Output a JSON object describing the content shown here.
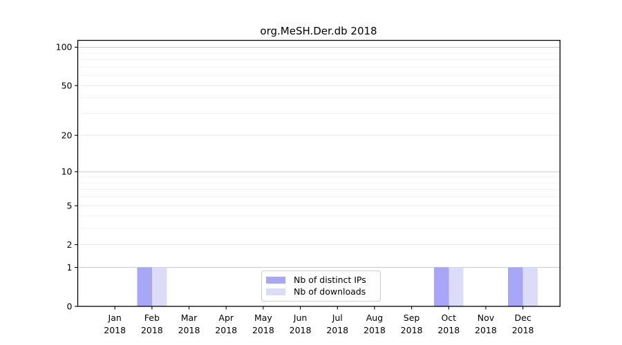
{
  "chart_data": {
    "type": "bar",
    "title": "org.MeSH.Der.db 2018",
    "categories": [
      "Jan",
      "Feb",
      "Mar",
      "Apr",
      "May",
      "Jun",
      "Jul",
      "Aug",
      "Sep",
      "Oct",
      "Nov",
      "Dec"
    ],
    "x_tick_year": "2018",
    "series": [
      {
        "name": "Nb of distinct IPs",
        "color": "#a8a6f6",
        "values": [
          0,
          1,
          0,
          0,
          0,
          0,
          0,
          0,
          0,
          1,
          0,
          1
        ]
      },
      {
        "name": "Nb of downloads",
        "color": "#dcdcf8",
        "values": [
          0,
          1,
          0,
          0,
          0,
          0,
          0,
          0,
          0,
          1,
          0,
          1
        ]
      }
    ],
    "yscale": "log1p",
    "y_ticks": [
      0,
      1,
      2,
      5,
      10,
      20,
      50,
      100
    ],
    "y_minor_ticks": [
      3,
      4,
      6,
      7,
      8,
      9,
      30,
      40,
      60,
      70,
      80,
      90
    ],
    "ylim": [
      0,
      113
    ],
    "grid": true,
    "legend_position": "lower center",
    "grid_colors": {
      "power_of_ten": "#c9c9c9",
      "major": "#e9e9e9",
      "minor": "#f2f2f2"
    }
  }
}
